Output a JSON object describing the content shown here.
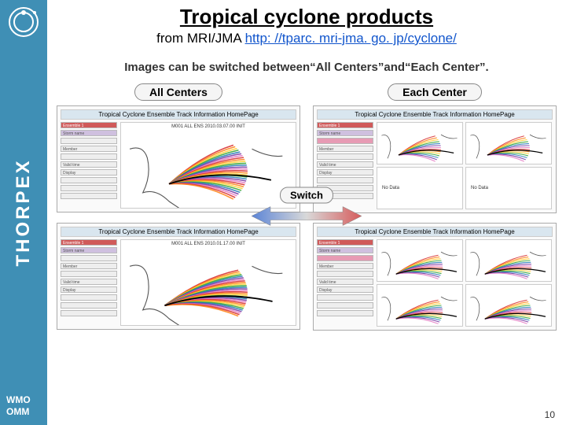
{
  "rail": {
    "brand": "THORPEX",
    "wmo_line1": "WMO",
    "wmo_line2": "OMM"
  },
  "heading": {
    "title": "Tropical cyclone products",
    "from": "from MRI/JMA ",
    "url": "http: //tparc. mri-jma. go. jp/cyclone/"
  },
  "caption": "Images can be switched between“All Centers”and“Each Center”.",
  "labels": {
    "all": "All Centers",
    "each": "Each Center",
    "switch": "Switch",
    "panel_title": "Tropical Cyclone Ensemble Track Information HomePage"
  },
  "map_text": {
    "top1": "M001  ALL  ENS  2010.03.07.00  INIT",
    "top2": "M001  ALL  ENS  2010.01.17.00  INIT",
    "nodata": "No Data"
  },
  "side_items": [
    "Ensemble 1",
    "Storm name",
    "",
    "Member",
    "",
    "Valid time",
    "Display",
    "",
    "",
    ""
  ],
  "colors": {
    "rail": "#3f8fb5",
    "link": "#1155cc",
    "arrow_left": "#5b84d6",
    "arrow_right": "#d65b5b",
    "coast": "#555555",
    "rainbow": [
      "#d62728",
      "#ff7f0e",
      "#ffcf2e",
      "#2ca02c",
      "#1f77b4",
      "#7030a0",
      "#e377c2"
    ]
  },
  "page_number": "10",
  "logo": {
    "ring": "#ffffff",
    "dot": "#ffffff"
  }
}
